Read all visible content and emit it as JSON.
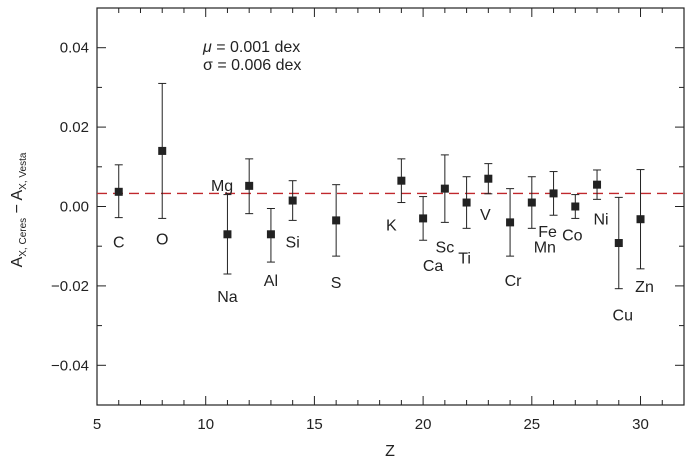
{
  "chart_data": {
    "type": "scatter",
    "title": "",
    "xlabel": "Z",
    "ylabel": {
      "main": "A",
      "sub1": "X, Ceres",
      "minus": " − A",
      "sub2": "X, Vesta"
    },
    "xlim": [
      5,
      32
    ],
    "ylim": [
      -0.05,
      0.05
    ],
    "xticks": [
      5,
      10,
      15,
      20,
      25,
      30
    ],
    "xtick_labels": [
      "5",
      "10",
      "15",
      "20",
      "25",
      "30"
    ],
    "yticks": [
      -0.04,
      -0.02,
      0.0,
      0.02,
      0.04
    ],
    "ytick_labels": [
      "−0.04",
      "−0.02",
      "0.00",
      "0.02",
      "0.04"
    ],
    "reference_line": {
      "y": 0.0033,
      "color": "#c0282d",
      "style": "dashed"
    },
    "annotations": [
      {
        "symbol": "μ",
        "text": " = 0.001 dex"
      },
      {
        "symbol": "σ",
        "text": " = 0.006 dex"
      }
    ],
    "series": [
      {
        "marker": "square",
        "color": "#222222",
        "points": [
          {
            "label": "C",
            "x": 6,
            "y": 0.0037,
            "err_low": 0.0065,
            "err_high": 0.0068
          },
          {
            "label": "O",
            "x": 8,
            "y": 0.014,
            "err_low": 0.017,
            "err_high": 0.017
          },
          {
            "label": "Na",
            "x": 11,
            "y": -0.007,
            "err_low": 0.01,
            "err_high": 0.01
          },
          {
            "label": "Mg",
            "x": 12,
            "y": 0.0052,
            "err_low": 0.007,
            "err_high": 0.0068
          },
          {
            "label": "Al",
            "x": 13,
            "y": -0.007,
            "err_low": 0.007,
            "err_high": 0.0065
          },
          {
            "label": "Si",
            "x": 14,
            "y": 0.0015,
            "err_low": 0.005,
            "err_high": 0.005
          },
          {
            "label": "S",
            "x": 16,
            "y": -0.0035,
            "err_low": 0.009,
            "err_high": 0.009
          },
          {
            "label": "K",
            "x": 19,
            "y": 0.0065,
            "err_low": 0.0055,
            "err_high": 0.0055
          },
          {
            "label": "Ca",
            "x": 20,
            "y": -0.003,
            "err_low": 0.0055,
            "err_high": 0.0055
          },
          {
            "label": "Sc",
            "x": 21,
            "y": 0.0045,
            "err_low": 0.0085,
            "err_high": 0.0085
          },
          {
            "label": "Ti",
            "x": 22,
            "y": 0.001,
            "err_low": 0.0065,
            "err_high": 0.0065
          },
          {
            "label": "V",
            "x": 23,
            "y": 0.007,
            "err_low": 0.0038,
            "err_high": 0.0038
          },
          {
            "label": "Cr",
            "x": 24,
            "y": -0.004,
            "err_low": 0.0085,
            "err_high": 0.0085
          },
          {
            "label": "Mn",
            "x": 25,
            "y": 0.001,
            "err_low": 0.0065,
            "err_high": 0.0065
          },
          {
            "label": "Fe",
            "x": 26,
            "y": 0.0033,
            "err_low": 0.0055,
            "err_high": 0.0055
          },
          {
            "label": "Co",
            "x": 27,
            "y": 0.0,
            "err_low": 0.003,
            "err_high": 0.003
          },
          {
            "label": "Ni",
            "x": 28,
            "y": 0.0055,
            "err_low": 0.0037,
            "err_high": 0.0037
          },
          {
            "label": "Cu",
            "x": 29,
            "y": -0.0092,
            "err_low": 0.0115,
            "err_high": 0.0115
          },
          {
            "label": "Zn",
            "x": 30,
            "y": -0.0032,
            "err_low": 0.0125,
            "err_high": 0.0125
          }
        ]
      }
    ]
  }
}
